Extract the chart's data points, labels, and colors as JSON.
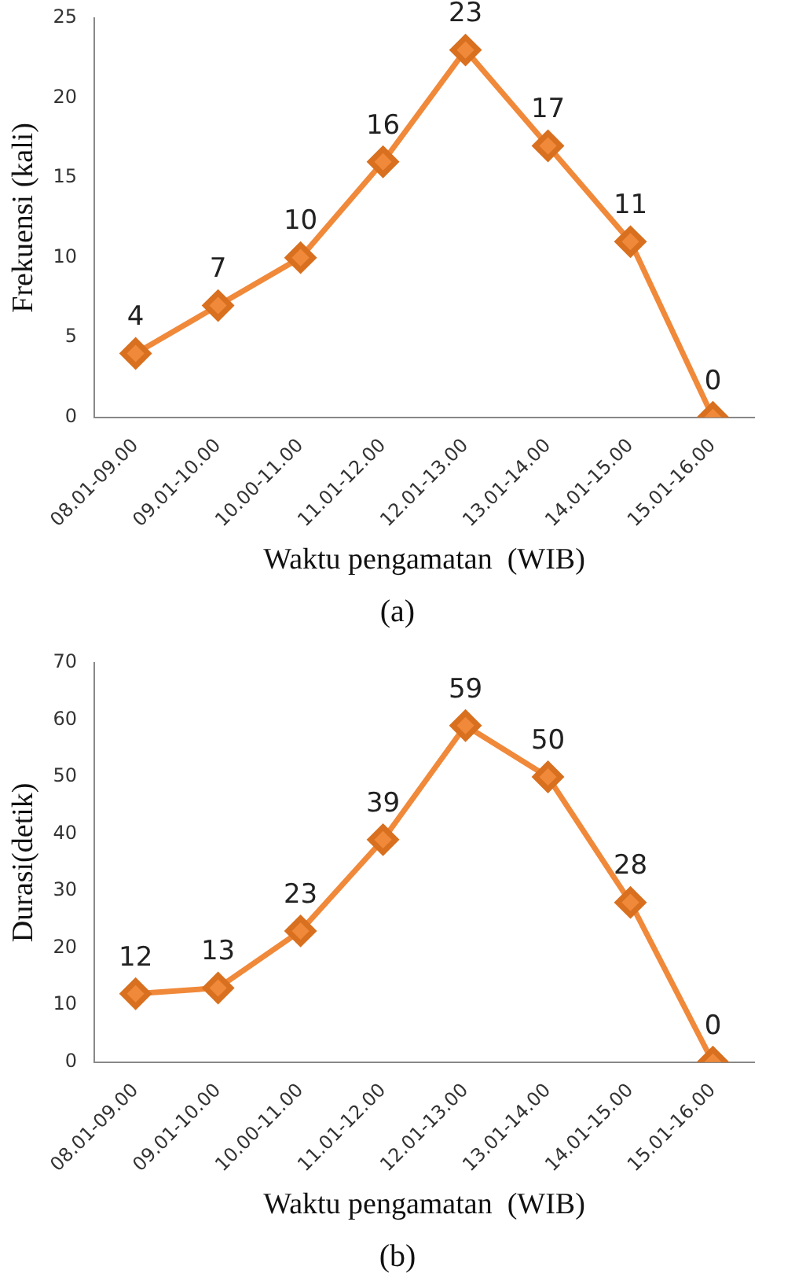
{
  "chart_data": [
    {
      "type": "line",
      "categories": [
        "08.01-09.00",
        "09.01-10.00",
        "10.00-11.00",
        "11.01-12.00",
        "12.01-13.00",
        "13.01-14.00",
        "14.01-15.00",
        "15.01-16.00"
      ],
      "series": [
        {
          "color": "#f0893a",
          "values": [
            4,
            7,
            10,
            16,
            23,
            17,
            11,
            0
          ]
        }
      ],
      "ylim": [
        0,
        25
      ],
      "yticks": [
        0,
        5,
        10,
        15,
        20,
        25
      ],
      "ylabel": "Frekuensi (kali)",
      "xlabel": "Waktu pengamatan  (WIB)",
      "marker": "diamond",
      "data_labels": true,
      "grid": false,
      "legend": false,
      "annotations": [
        "(a)"
      ]
    },
    {
      "type": "line",
      "categories": [
        "08.01-09.00",
        "09.01-10.00",
        "10.00-11.00",
        "11.01-12.00",
        "12.01-13.00",
        "13.01-14.00",
        "14.01-15.00",
        "15.01-16.00"
      ],
      "series": [
        {
          "color": "#f0893a",
          "values": [
            12,
            13,
            23,
            39,
            59,
            50,
            28,
            0
          ]
        }
      ],
      "ylim": [
        0,
        70
      ],
      "yticks": [
        0,
        10,
        20,
        30,
        40,
        50,
        60,
        70
      ],
      "ylabel": "Durasi(detik)",
      "xlabel": "Waktu pengamatan  (WIB)",
      "marker": "diamond",
      "data_labels": true,
      "grid": false,
      "legend": false,
      "annotations": [
        "(b)"
      ]
    }
  ]
}
